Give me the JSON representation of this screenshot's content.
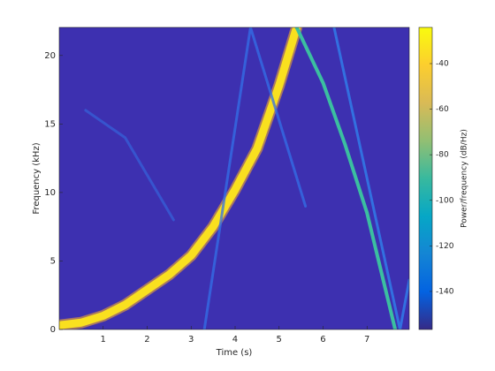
{
  "chart_data": {
    "type": "spectrogram",
    "xlabel": "Time (s)",
    "ylabel": "Frequency (kHz)",
    "xlim": [
      0,
      7.96
    ],
    "ylim": [
      0,
      22.05
    ],
    "xticks": [
      1,
      2,
      3,
      4,
      5,
      6,
      7
    ],
    "yticks": [
      0,
      5,
      10,
      15,
      20
    ],
    "background": "#3d30b0",
    "series": [
      {
        "color": "#f9e01f",
        "x": [
          0,
          0.5,
          1,
          1.5,
          2,
          2.5,
          3,
          3.5,
          4,
          4.5,
          5,
          5.4
        ],
        "values": [
          0.3,
          0.5,
          1.0,
          1.8,
          2.9,
          4.0,
          5.4,
          7.5,
          10.2,
          13.2,
          17.8,
          22.05
        ]
      },
      {
        "color": "#3bbfa0",
        "x": [
          5.4,
          6,
          6.5,
          7,
          7.64
        ],
        "values": [
          22.05,
          18,
          13.5,
          8.5,
          0
        ]
      },
      {
        "color": "#2f86f0",
        "x": [
          6.25,
          7.75,
          7.96
        ],
        "values": [
          22.05,
          0,
          3.6
        ]
      },
      {
        "color": "#3370e8",
        "x": [
          3.3,
          4.35,
          5.6
        ],
        "values": [
          0,
          22.05,
          9
        ]
      },
      {
        "color": "#3560d8",
        "x": [
          0.6,
          1.5,
          2.6
        ],
        "values": [
          16,
          14,
          8
        ]
      }
    ],
    "colorbar": {
      "label": "Power/frequency (dB/Hz)",
      "clim": [
        -156.7,
        -24.1
      ],
      "ticks": [
        -40,
        -60,
        -80,
        -100,
        -120,
        -140
      ],
      "colormap": [
        "#352a87",
        "#0363e1",
        "#1485d4",
        "#06a7c6",
        "#38b99e",
        "#92bf73",
        "#d9ba56",
        "#fcce2e",
        "#f9fb0e"
      ]
    }
  }
}
